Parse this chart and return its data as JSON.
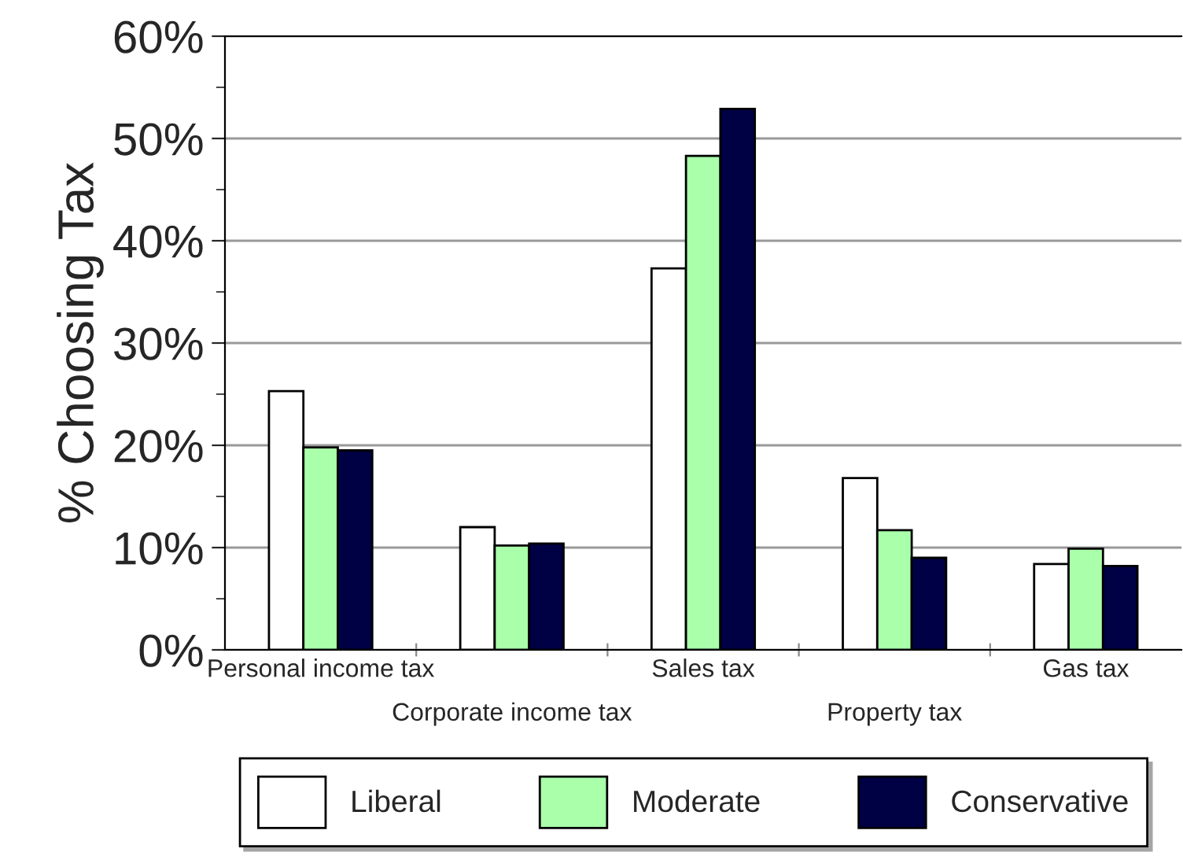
{
  "chart_data": {
    "type": "bar",
    "ylabel": "% Choosing Tax",
    "categories": [
      "Personal income tax",
      "Corporate income tax",
      "Sales tax",
      "Property tax",
      "Gas tax"
    ],
    "series": [
      {
        "name": "Liberal",
        "color": "#ffffff",
        "values": [
          25.3,
          12.0,
          37.3,
          16.8,
          8.4
        ]
      },
      {
        "name": "Moderate",
        "color": "#aaffaa",
        "values": [
          19.8,
          10.2,
          48.3,
          11.7,
          9.9
        ]
      },
      {
        "name": "Conservative",
        "color": "#000044",
        "values": [
          19.5,
          10.4,
          52.9,
          9.0,
          8.2
        ]
      }
    ],
    "ylim": [
      0,
      60
    ],
    "yticks": [
      {
        "value": 0,
        "label": "0%"
      },
      {
        "value": 5,
        "label": null
      },
      {
        "value": 10,
        "label": "10%"
      },
      {
        "value": 15,
        "label": null
      },
      {
        "value": 20,
        "label": "20%"
      },
      {
        "value": 25,
        "label": null
      },
      {
        "value": 30,
        "label": "30%"
      },
      {
        "value": 35,
        "label": null
      },
      {
        "value": 40,
        "label": "40%"
      },
      {
        "value": 45,
        "label": null
      },
      {
        "value": 50,
        "label": "50%"
      },
      {
        "value": 55,
        "label": null
      },
      {
        "value": 60,
        "label": "60%"
      }
    ],
    "grid": "y",
    "legend": "bottom"
  }
}
